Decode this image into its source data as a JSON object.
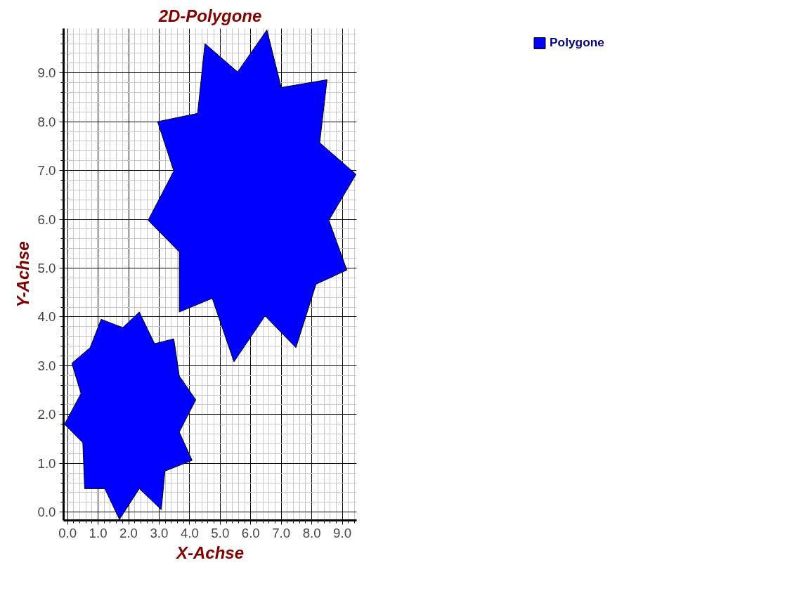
{
  "chart_data": {
    "type": "area",
    "title": "2D-Polygone",
    "xlabel": "X-Achse",
    "ylabel": "Y-Achse",
    "xlim": [
      -0.13,
      9.47
    ],
    "ylim": [
      -0.17,
      9.91
    ],
    "xticks": [
      {
        "value": 0,
        "label": "0.0"
      },
      {
        "value": 1,
        "label": "1.0"
      },
      {
        "value": 2,
        "label": "2.0"
      },
      {
        "value": 3,
        "label": "3.0"
      },
      {
        "value": 4,
        "label": "4.0"
      },
      {
        "value": 5,
        "label": "5.0"
      },
      {
        "value": 6,
        "label": "6.0"
      },
      {
        "value": 7,
        "label": "7.0"
      },
      {
        "value": 8,
        "label": "8.0"
      },
      {
        "value": 9,
        "label": "9.0"
      }
    ],
    "yticks": [
      {
        "value": 0,
        "label": "0.0"
      },
      {
        "value": 1,
        "label": "1.0"
      },
      {
        "value": 2,
        "label": "2.0"
      },
      {
        "value": 3,
        "label": "3.0"
      },
      {
        "value": 4,
        "label": "4.0"
      },
      {
        "value": 5,
        "label": "5.0"
      },
      {
        "value": 6,
        "label": "6.0"
      },
      {
        "value": 7,
        "label": "7.0"
      },
      {
        "value": 8,
        "label": "8.0"
      },
      {
        "value": 9,
        "label": "9.0"
      }
    ],
    "grid": true,
    "legend": "top right",
    "series": [
      {
        "name": "Polygone",
        "color": "#0000ff",
        "x": [
          1.1,
          1.81,
          2.35,
          2.85,
          3.48,
          3.66,
          4.2,
          3.66,
          4.08,
          3.19,
          3.07,
          2.35,
          1.7,
          1.22,
          0.56,
          0.5,
          -0.1,
          0.44,
          0.14,
          0.74,
          null,
          2.95,
          4.26,
          4.5,
          5.57,
          6.53,
          7.0,
          8.5,
          8.26,
          9.45,
          8.56,
          9.15,
          8.14,
          7.48,
          6.47,
          5.45,
          4.74,
          3.66,
          3.66,
          2.64,
          3.48
        ],
        "values": [
          3.95,
          3.78,
          4.1,
          3.45,
          3.55,
          2.79,
          2.3,
          1.64,
          1.06,
          0.84,
          0.05,
          0.48,
          -0.15,
          0.48,
          0.48,
          1.42,
          1.8,
          2.43,
          3.05,
          3.37,
          null,
          8.0,
          8.17,
          9.6,
          9.02,
          9.88,
          8.7,
          8.86,
          7.57,
          6.92,
          5.98,
          4.96,
          4.67,
          3.37,
          4.02,
          3.08,
          4.38,
          4.1,
          5.33,
          5.98,
          6.99
        ]
      }
    ]
  }
}
